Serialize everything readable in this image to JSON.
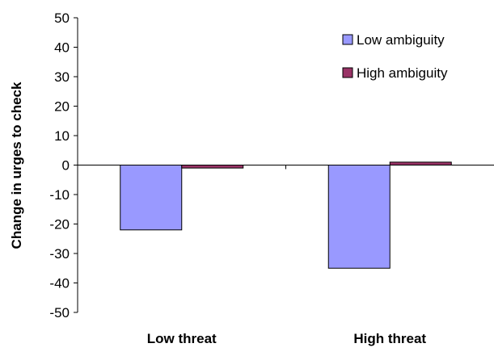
{
  "chart_data": {
    "type": "bar",
    "categories": [
      "Low threat",
      "High threat"
    ],
    "series": [
      {
        "name": "Low ambiguity",
        "values": [
          -22,
          -35
        ],
        "color": "#9999ff"
      },
      {
        "name": "High ambiguity",
        "values": [
          -1,
          1
        ],
        "color": "#993366"
      }
    ],
    "title": "",
    "xlabel": "",
    "ylabel": "Change in urges to check",
    "ylim": [
      -50,
      50
    ],
    "yticks": [
      50,
      40,
      30,
      20,
      10,
      0,
      -10,
      -20,
      -30,
      -40,
      -50
    ],
    "grid": false,
    "legend_position": "top-right"
  }
}
